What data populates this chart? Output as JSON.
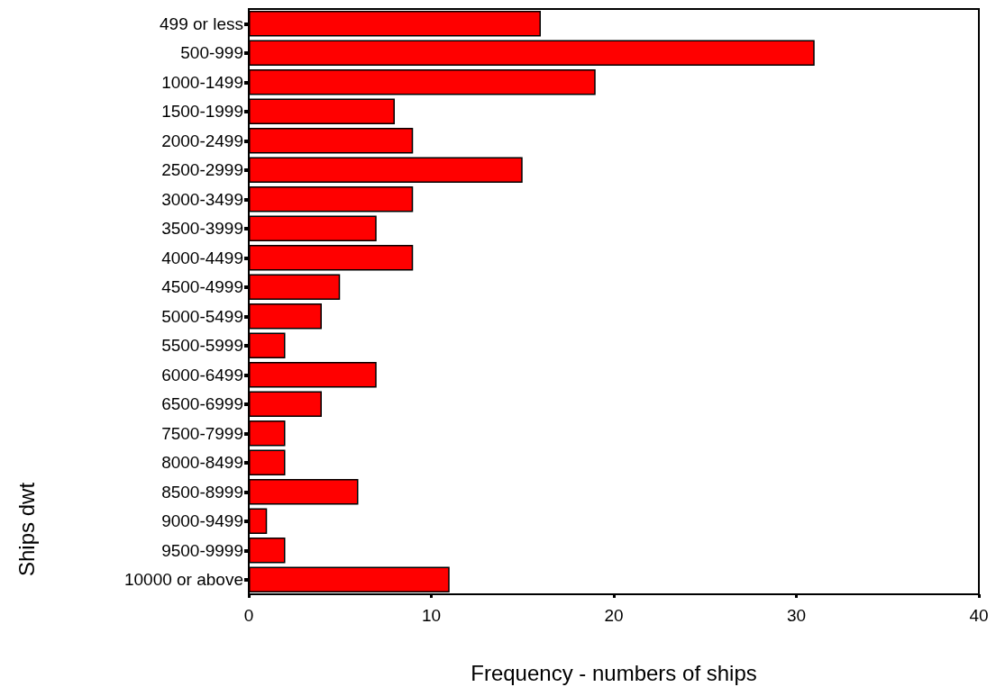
{
  "chart_data": {
    "type": "bar",
    "orientation": "horizontal",
    "categories": [
      "499 or less",
      "500-999",
      "1000-1499",
      "1500-1999",
      "2000-2499",
      "2500-2999",
      "3000-3499",
      "3500-3999",
      "4000-4499",
      "4500-4999",
      "5000-5499",
      "5500-5999",
      "6000-6499",
      "6500-6999",
      "7500-7999",
      "8000-8499",
      "8500-8999",
      "9000-9499",
      "9500-9999",
      "10000 or above"
    ],
    "values": [
      16,
      31,
      19,
      8,
      9,
      15,
      9,
      7,
      9,
      5,
      4,
      2,
      7,
      4,
      2,
      2,
      6,
      1,
      2,
      11
    ],
    "color": "#ff0000",
    "xlabel": "Frequency - numbers of ships",
    "ylabel": "Ships dwt",
    "xlim": [
      0,
      40
    ],
    "xticks": [
      0,
      10,
      20,
      30,
      40
    ]
  }
}
